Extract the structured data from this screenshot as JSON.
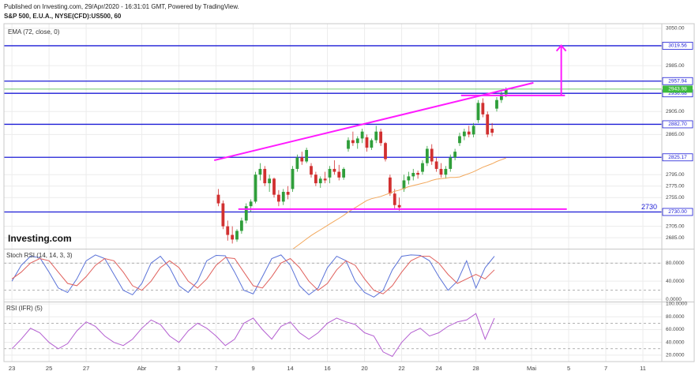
{
  "header": {
    "published": "Published on Investing.com, 29/Apr/2020 - 16:31:01 GMT, Powered by TradingView.",
    "logo": "Investing.com"
  },
  "chart_data": [
    {
      "type": "candlestick",
      "title": "S&P 500, E.U.A., NYSE(CFD):US500, 60",
      "colors": {
        "up": "#2f9e3a",
        "down": "#d13030"
      },
      "x": [
        11.125,
        11.375,
        11.625,
        11.875,
        12.125,
        12.375,
        12.625,
        12.875,
        13.125,
        13.375,
        13.625,
        13.875,
        14.125,
        14.375,
        14.625,
        14.875,
        15.125,
        15.375,
        15.625,
        15.875,
        16.125,
        16.375,
        16.625,
        16.875,
        17.125,
        17.375,
        17.625,
        17.875,
        18.125,
        18.375,
        18.625,
        18.875,
        19.125,
        19.375,
        19.625,
        19.875,
        20.125,
        20.375,
        20.625,
        20.875,
        21.125,
        21.375,
        21.625,
        21.875,
        22.125,
        22.375,
        22.625,
        22.875,
        23.125,
        23.375,
        23.625,
        23.875,
        24.125,
        24.375,
        24.625,
        24.875,
        25.125,
        25.375,
        25.625,
        25.875,
        26.125,
        26.375,
        26.625
      ],
      "open": [
        2760,
        2745,
        2705,
        2690,
        2682,
        2697,
        2715,
        2740,
        2748,
        2795,
        2805,
        2780,
        2788,
        2760,
        2748,
        2765,
        2770,
        2805,
        2825,
        2818,
        2810,
        2795,
        2780,
        2788,
        2790,
        2805,
        2800,
        2790,
        2840,
        2855,
        2850,
        2858,
        2860,
        2842,
        2855,
        2870,
        2850,
        2790,
        2762,
        2742,
        2770,
        2785,
        2792,
        2798,
        2800,
        2815,
        2840,
        2818,
        2805,
        2795,
        2805,
        2825,
        2850,
        2862,
        2870,
        2865,
        2890,
        2920,
        2900,
        2875,
        2910,
        2925,
        2935
      ],
      "high": [
        2770,
        2750,
        2715,
        2705,
        2700,
        2720,
        2745,
        2752,
        2800,
        2815,
        2810,
        2795,
        2790,
        2768,
        2770,
        2775,
        2810,
        2830,
        2835,
        2842,
        2815,
        2800,
        2792,
        2800,
        2810,
        2820,
        2812,
        2808,
        2860,
        2870,
        2862,
        2875,
        2865,
        2858,
        2880,
        2875,
        2852,
        2795,
        2770,
        2755,
        2795,
        2800,
        2805,
        2802,
        2820,
        2845,
        2848,
        2825,
        2815,
        2810,
        2830,
        2840,
        2868,
        2875,
        2880,
        2885,
        2925,
        2928,
        2905,
        2885,
        2930,
        2940,
        2947
      ],
      "low": [
        2740,
        2700,
        2680,
        2675,
        2678,
        2692,
        2710,
        2730,
        2745,
        2785,
        2775,
        2765,
        2755,
        2740,
        2742,
        2752,
        2765,
        2800,
        2812,
        2815,
        2790,
        2775,
        2772,
        2780,
        2780,
        2795,
        2785,
        2786,
        2835,
        2845,
        2840,
        2850,
        2835,
        2838,
        2850,
        2845,
        2818,
        2758,
        2735,
        2732,
        2765,
        2778,
        2785,
        2788,
        2795,
        2810,
        2812,
        2800,
        2790,
        2788,
        2800,
        2820,
        2845,
        2855,
        2860,
        2860,
        2885,
        2895,
        2860,
        2862,
        2905,
        2920,
        2930
      ],
      "close": [
        2745,
        2705,
        2690,
        2682,
        2697,
        2715,
        2740,
        2748,
        2795,
        2805,
        2780,
        2788,
        2760,
        2748,
        2765,
        2760,
        2805,
        2825,
        2818,
        2838,
        2795,
        2780,
        2788,
        2785,
        2805,
        2800,
        2790,
        2805,
        2855,
        2850,
        2858,
        2870,
        2842,
        2855,
        2870,
        2850,
        2822,
        2762,
        2742,
        2738,
        2785,
        2792,
        2798,
        2795,
        2815,
        2840,
        2818,
        2805,
        2795,
        2805,
        2825,
        2835,
        2862,
        2870,
        2865,
        2880,
        2920,
        2900,
        2865,
        2868,
        2925,
        2935,
        2944
      ],
      "series": [
        {
          "name": "EMA (72, close, 0)",
          "color": "#f2a85c",
          "values": [
            null,
            null,
            null,
            null,
            null,
            null,
            null,
            null,
            null,
            null,
            null,
            null,
            null,
            null,
            null,
            null,
            2665,
            2671,
            2677,
            2683,
            2689,
            2694,
            2699,
            2704,
            2709,
            2714,
            2719,
            2724,
            2730,
            2735,
            2740,
            2745,
            2750,
            2753,
            2755,
            2757,
            2760,
            2763,
            2766,
            2768,
            2771,
            2774,
            2776,
            2778,
            2780,
            2782,
            2785,
            2787,
            2788,
            2789,
            2790,
            2790,
            2791,
            2794,
            2797,
            2800,
            2804,
            2808,
            2811,
            2814,
            2818,
            2821,
            2824
          ]
        }
      ],
      "xlim": [
        -0.43,
        35.02
      ],
      "ylim": [
        2666,
        3058
      ],
      "grid": true,
      "yticks": [
        {
          "value": 3050,
          "label": "3050.00"
        },
        {
          "value": 2985,
          "label": "2985.00"
        },
        {
          "value": 2905,
          "label": "2905.00"
        },
        {
          "value": 2865,
          "label": "2865.00"
        },
        {
          "value": 2795,
          "label": "2795.00"
        },
        {
          "value": 2775,
          "label": "2775.00"
        },
        {
          "value": 2755,
          "label": "2755.00"
        },
        {
          "value": 2705,
          "label": "2705.00"
        },
        {
          "value": 2685,
          "label": "2685.00"
        }
      ],
      "level_color": "#1c1cd6",
      "levels": [
        {
          "value": 3019.56,
          "label": "3019.56"
        },
        {
          "value": 2957.94,
          "label": "2957.94"
        },
        {
          "value": 2936.68,
          "label": "2936.68"
        },
        {
          "value": 2882.7,
          "label": "2882.70"
        },
        {
          "value": 2825.17,
          "label": "2825.17"
        },
        {
          "value": 2730,
          "label": "2730.00"
        }
      ],
      "current": {
        "value": 2943.98,
        "label": "2943.98",
        "color": "#3dbb3d"
      },
      "drawing_color": "#ff1aff",
      "drawings": [
        {
          "x": [
            10.9,
            28.1
          ],
          "y": [
            2820,
            2955
          ]
        },
        {
          "x": [
            12.2,
            29.9
          ],
          "y": [
            2735,
            2735
          ]
        },
        {
          "x": [
            24.2,
            29.8
          ],
          "y": [
            2933,
            2933
          ]
        }
      ],
      "arrow": {
        "x": [
          29.6,
          29.6
        ],
        "y": [
          2933,
          3020
        ]
      },
      "annotations": [
        {
          "text": "2730",
          "y": 2730
        }
      ]
    },
    {
      "type": "line",
      "title": "Stoch RSI (14, 14, 3, 3)",
      "x": [
        0,
        0.5,
        1,
        1.5,
        2,
        2.5,
        3,
        3.5,
        4,
        4.5,
        5,
        5.5,
        6,
        6.5,
        7,
        7.5,
        8,
        8.5,
        9,
        9.5,
        10,
        10.5,
        11,
        11.5,
        12,
        12.5,
        13,
        13.5,
        14,
        14.5,
        15,
        15.5,
        16,
        16.5,
        17,
        17.5,
        18,
        18.5,
        19,
        19.5,
        20,
        20.5,
        21,
        21.5,
        22,
        22.5,
        23,
        23.5,
        24,
        24.5,
        25,
        25.5,
        26
      ],
      "series": [
        {
          "color": "#5a72d8",
          "values": [
            40,
            75,
            95,
            92,
            60,
            25,
            15,
            45,
            85,
            98,
            90,
            55,
            20,
            10,
            35,
            80,
            95,
            70,
            30,
            15,
            40,
            85,
            97,
            96,
            60,
            20,
            12,
            50,
            90,
            98,
            75,
            30,
            10,
            25,
            70,
            95,
            85,
            40,
            15,
            5,
            20,
            65,
            95,
            98,
            97,
            85,
            50,
            20,
            40,
            85,
            25,
            70,
            95
          ]
        },
        {
          "color": "#e0605c",
          "values": [
            45,
            60,
            80,
            90,
            85,
            60,
            35,
            30,
            50,
            75,
            90,
            85,
            60,
            30,
            20,
            40,
            70,
            85,
            70,
            40,
            25,
            45,
            75,
            92,
            90,
            60,
            30,
            25,
            50,
            80,
            90,
            70,
            40,
            20,
            35,
            65,
            85,
            75,
            45,
            20,
            12,
            30,
            60,
            85,
            95,
            95,
            80,
            55,
            35,
            45,
            55,
            45,
            65
          ]
        }
      ],
      "xlim": [
        -0.43,
        35.02
      ],
      "ylim": [
        -5,
        110
      ],
      "grid": true,
      "levels": [
        20,
        80
      ],
      "yticks": [
        {
          "value": 80,
          "label": "80.0000"
        },
        {
          "value": 40,
          "label": "40.0000"
        },
        {
          "value": 0,
          "label": "0.0000"
        }
      ]
    },
    {
      "type": "line",
      "title": "RSI (IFR) (5)",
      "x": [
        0,
        0.5,
        1,
        1.5,
        2,
        2.5,
        3,
        3.5,
        4,
        4.5,
        5,
        5.5,
        6,
        6.5,
        7,
        7.5,
        8,
        8.5,
        9,
        9.5,
        10,
        10.5,
        11,
        11.5,
        12,
        12.5,
        13,
        13.5,
        14,
        14.5,
        15,
        15.5,
        16,
        16.5,
        17,
        17.5,
        18,
        18.5,
        19,
        19.5,
        20,
        20.5,
        21,
        21.5,
        22,
        22.5,
        23,
        23.5,
        24,
        24.5,
        25,
        25.5,
        26
      ],
      "series": [
        {
          "color": "#b45fd1",
          "values": [
            30,
            45,
            62,
            55,
            40,
            30,
            38,
            58,
            72,
            65,
            50,
            40,
            35,
            45,
            62,
            75,
            68,
            50,
            40,
            58,
            70,
            62,
            50,
            35,
            45,
            70,
            78,
            60,
            45,
            65,
            72,
            55,
            45,
            55,
            70,
            78,
            72,
            68,
            55,
            50,
            25,
            18,
            40,
            55,
            62,
            50,
            55,
            65,
            72,
            75,
            85,
            45,
            78
          ]
        }
      ],
      "xlim": [
        -0.43,
        35.02
      ],
      "ylim": [
        10,
        102.5
      ],
      "grid": true,
      "levels": [
        30,
        70
      ],
      "yticks": [
        {
          "value": 100,
          "label": "100.0000"
        },
        {
          "value": 80,
          "label": "80.0000"
        },
        {
          "value": 60,
          "label": "60.0000"
        },
        {
          "value": 40,
          "label": "40.0000"
        },
        {
          "value": 20,
          "label": "20.0000"
        }
      ],
      "xticks": [
        {
          "value": 0,
          "label": "23"
        },
        {
          "value": 2,
          "label": "25"
        },
        {
          "value": 4,
          "label": "27"
        },
        {
          "value": 7,
          "label": "Abr"
        },
        {
          "value": 9,
          "label": "3"
        },
        {
          "value": 11,
          "label": "7"
        },
        {
          "value": 13,
          "label": "9"
        },
        {
          "value": 15,
          "label": "14"
        },
        {
          "value": 17,
          "label": "16"
        },
        {
          "value": 19,
          "label": "20"
        },
        {
          "value": 21,
          "label": "22"
        },
        {
          "value": 23,
          "label": "24"
        },
        {
          "value": 25,
          "label": "28"
        },
        {
          "value": 28,
          "label": "Mai"
        },
        {
          "value": 30,
          "label": "5"
        },
        {
          "value": 32,
          "label": "7"
        },
        {
          "value": 34,
          "label": "11"
        }
      ]
    }
  ]
}
